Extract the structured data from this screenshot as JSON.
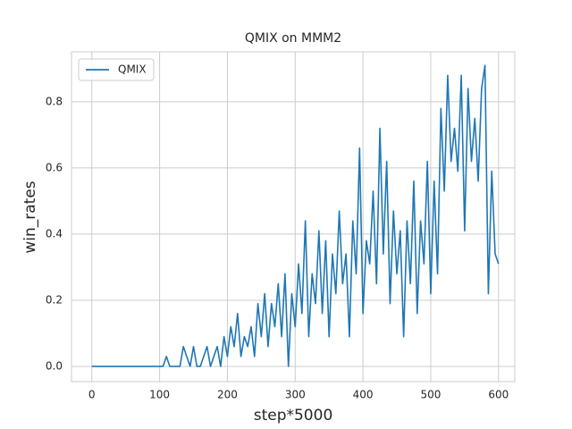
{
  "chart_data": {
    "type": "line",
    "title": "QMIX on MMM2",
    "x_label": "step*5000",
    "y_label": "win_rates",
    "x": [
      0,
      5,
      10,
      15,
      20,
      25,
      30,
      35,
      40,
      45,
      50,
      55,
      60,
      65,
      70,
      75,
      80,
      85,
      90,
      95,
      100,
      105,
      110,
      115,
      120,
      125,
      130,
      135,
      140,
      145,
      150,
      155,
      160,
      165,
      170,
      175,
      180,
      185,
      190,
      195,
      200,
      205,
      210,
      215,
      220,
      225,
      230,
      235,
      240,
      245,
      250,
      255,
      260,
      265,
      270,
      275,
      280,
      285,
      290,
      295,
      300,
      305,
      310,
      315,
      320,
      325,
      330,
      335,
      340,
      345,
      350,
      355,
      360,
      365,
      370,
      375,
      380,
      385,
      390,
      395,
      400,
      405,
      410,
      415,
      420,
      425,
      430,
      435,
      440,
      445,
      450,
      455,
      460,
      465,
      470,
      475,
      480,
      485,
      490,
      495,
      500,
      505,
      510,
      515,
      520,
      525,
      530,
      535,
      540,
      545,
      550,
      555,
      560,
      565,
      570,
      575,
      580,
      585,
      590,
      595,
      600
    ],
    "series": [
      {
        "name": "QMIX",
        "color": "#1f77b4",
        "values": [
          0,
          0,
          0,
          0,
          0,
          0,
          0,
          0,
          0,
          0,
          0,
          0,
          0,
          0,
          0,
          0,
          0,
          0,
          0,
          0,
          0,
          0,
          0.03,
          0,
          0,
          0,
          0,
          0.06,
          0.03,
          0,
          0.06,
          0,
          0,
          0.03,
          0.06,
          0,
          0.03,
          0.06,
          0,
          0.09,
          0.03,
          0.12,
          0.06,
          0.16,
          0.03,
          0.09,
          0.06,
          0.12,
          0.03,
          0.19,
          0.09,
          0.22,
          0.06,
          0.19,
          0.12,
          0.25,
          0.09,
          0.28,
          0,
          0.22,
          0.12,
          0.31,
          0.16,
          0.44,
          0.09,
          0.28,
          0.19,
          0.41,
          0.16,
          0.38,
          0.09,
          0.34,
          0.22,
          0.47,
          0.25,
          0.34,
          0.09,
          0.44,
          0.28,
          0.66,
          0.16,
          0.38,
          0.31,
          0.53,
          0.25,
          0.72,
          0.34,
          0.62,
          0.19,
          0.47,
          0.28,
          0.41,
          0.09,
          0.44,
          0.25,
          0.56,
          0.16,
          0.44,
          0.31,
          0.62,
          0.22,
          0.56,
          0.28,
          0.78,
          0.53,
          0.88,
          0.62,
          0.72,
          0.59,
          0.88,
          0.41,
          0.84,
          0.62,
          0.75,
          0.56,
          0.84,
          0.91,
          0.22,
          0.59,
          0.34,
          0.31
        ]
      }
    ],
    "xlim": [
      -30,
      624
    ],
    "ylim": [
      -0.046,
      0.951
    ],
    "xticks": [
      0,
      100,
      200,
      300,
      400,
      500,
      600
    ],
    "yticks": [
      {
        "value": 0,
        "label": "0.0"
      },
      0.2,
      0.4,
      0.6,
      0.8
    ],
    "grid": true,
    "legend": "upper left"
  }
}
